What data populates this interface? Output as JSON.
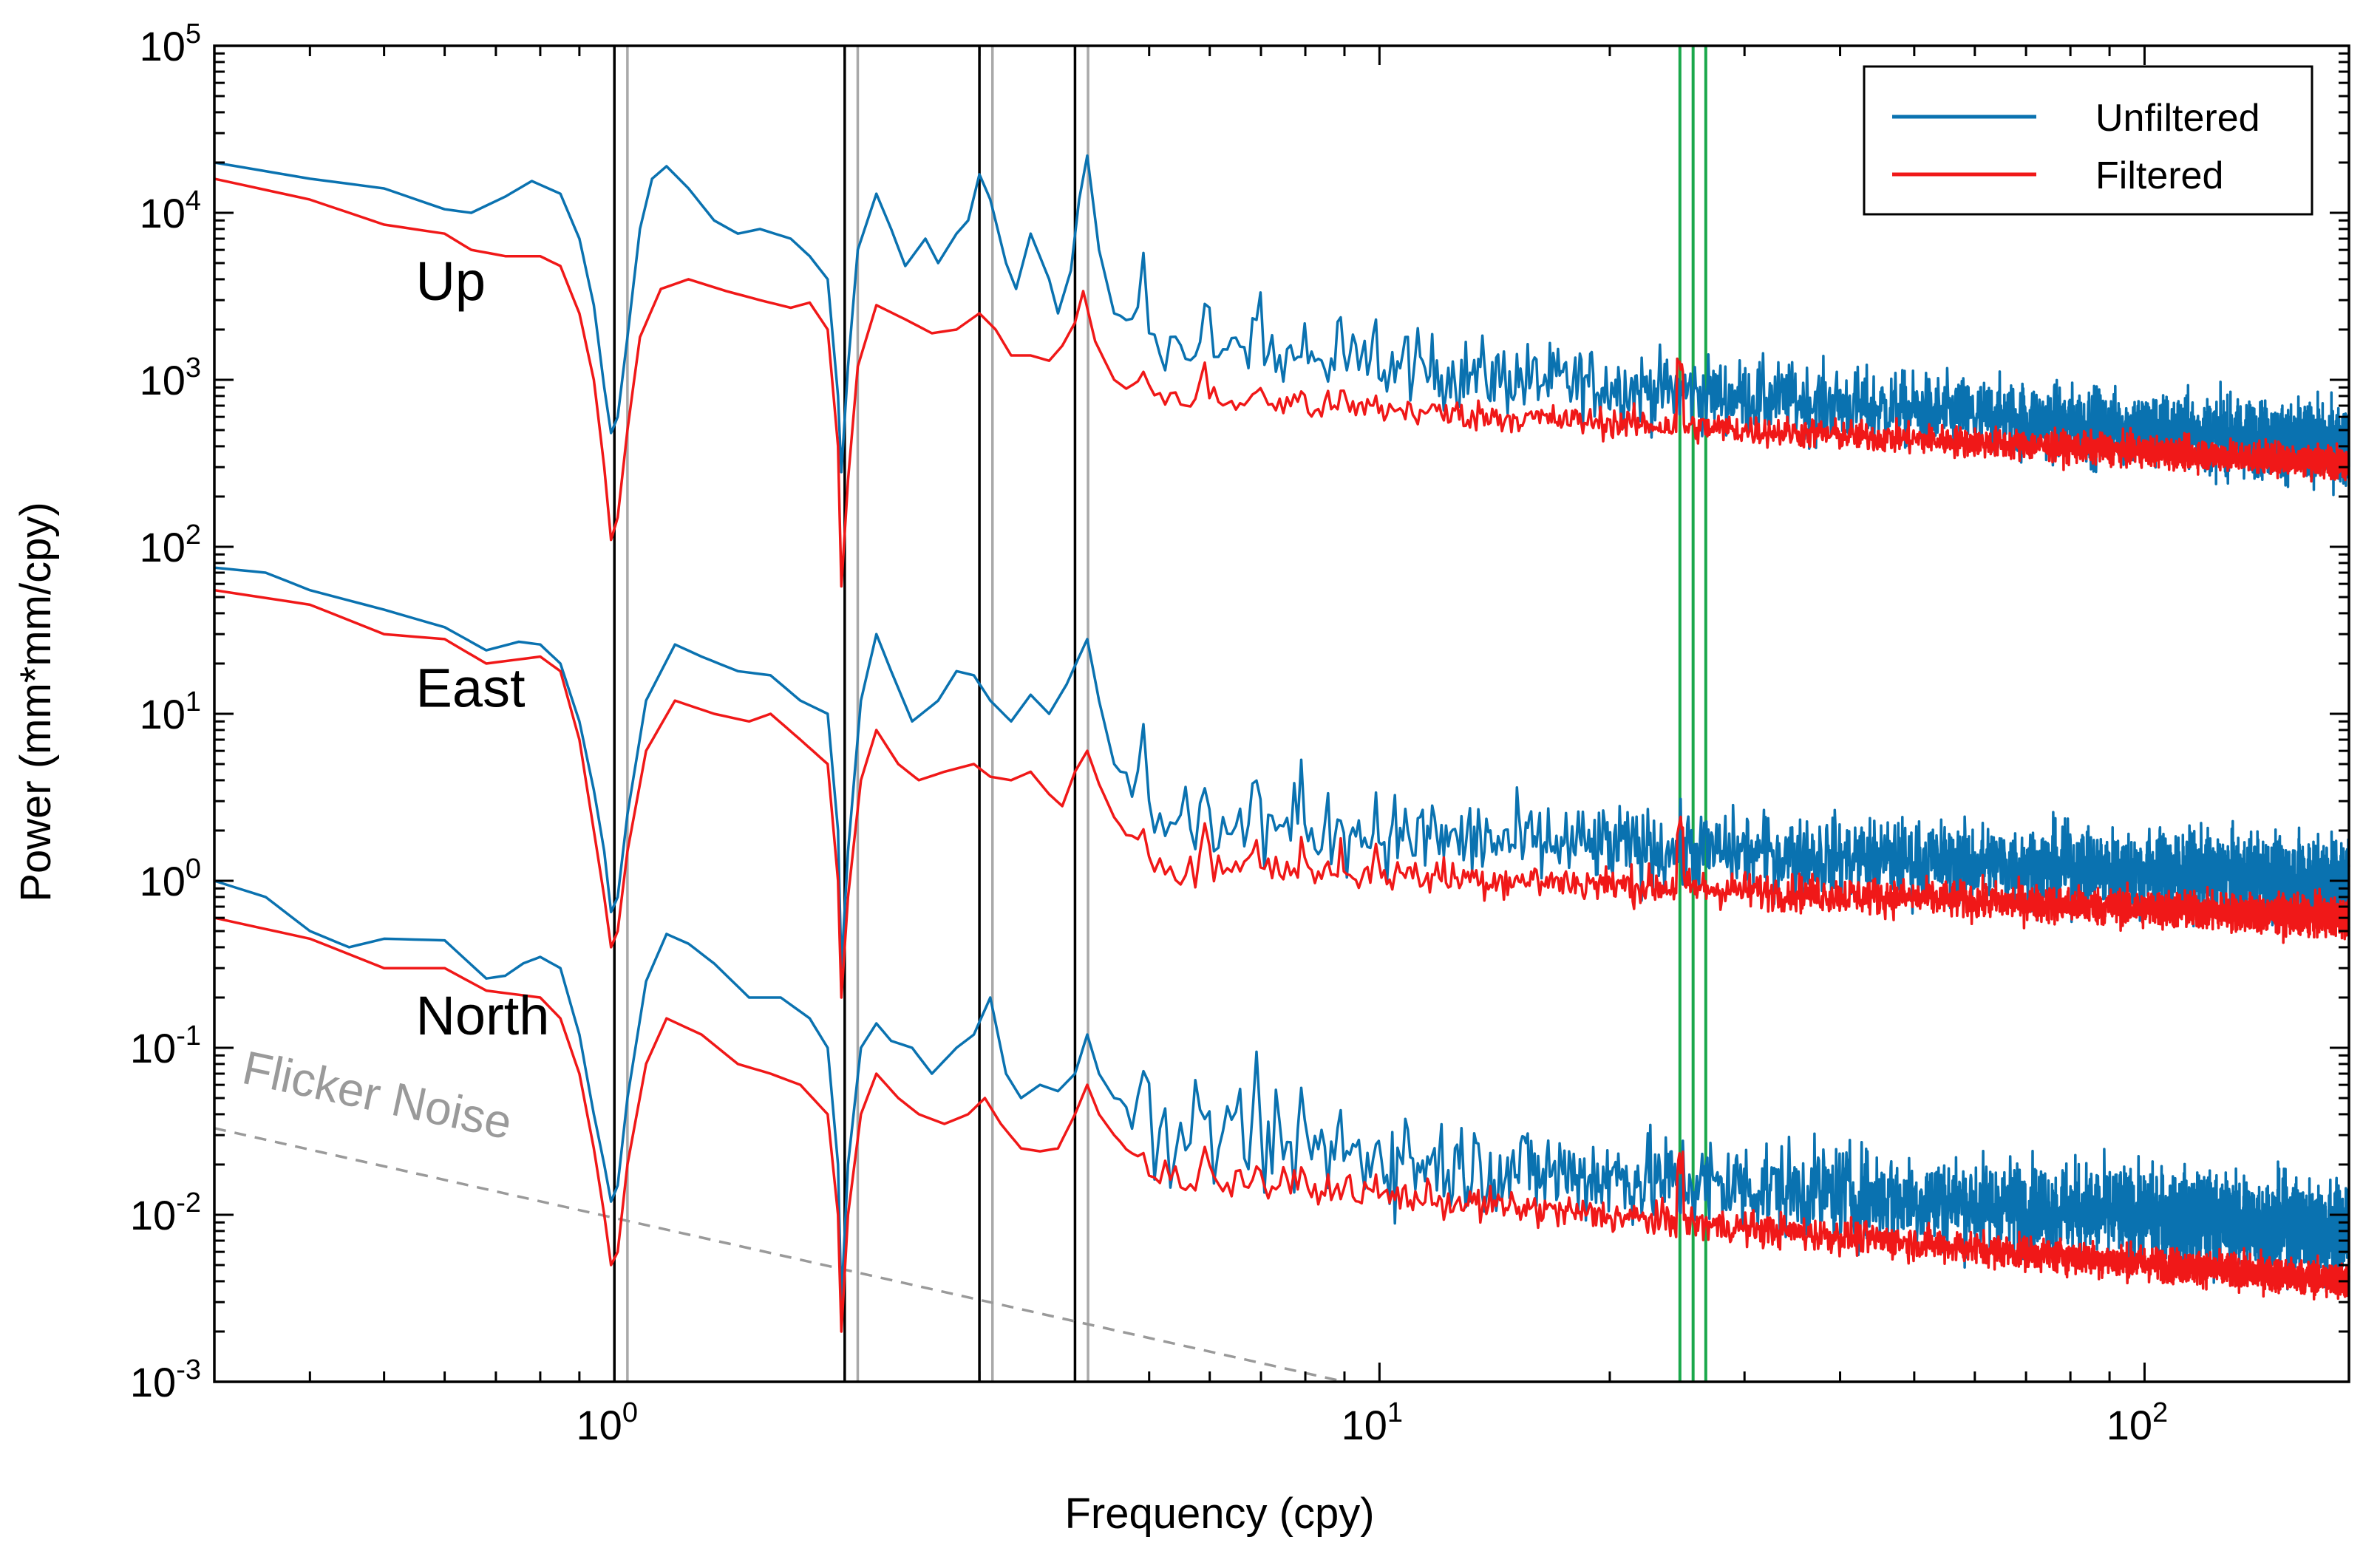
{
  "colors": {
    "unfiltered": "#0a72b0",
    "filtered": "#f01818",
    "vline_black": "#000000",
    "vline_gray": "#a9a9a9",
    "vline_green": "#1aa84b",
    "flicker": "#9a9a9a"
  },
  "chart_data": {
    "type": "line",
    "title": "",
    "xlabel": "Frequency (cpy)",
    "ylabel": "Power (mm*mm/cpy)",
    "xscale": "log",
    "yscale": "log",
    "xlim": [
      0.3,
      185
    ],
    "ylim": [
      0.001,
      100000
    ],
    "x_ticks": [
      {
        "value": 1,
        "base": "10",
        "exp": "0"
      },
      {
        "value": 10,
        "base": "10",
        "exp": "1"
      },
      {
        "value": 100,
        "base": "10",
        "exp": "2"
      }
    ],
    "y_ticks": [
      {
        "value": 0.001,
        "base": "10",
        "exp": "-3"
      },
      {
        "value": 0.01,
        "base": "10",
        "exp": "-2"
      },
      {
        "value": 0.1,
        "base": "10",
        "exp": "-1"
      },
      {
        "value": 1,
        "base": "10",
        "exp": "0"
      },
      {
        "value": 10,
        "base": "10",
        "exp": "1"
      },
      {
        "value": 100,
        "base": "10",
        "exp": "2"
      },
      {
        "value": 1000,
        "base": "10",
        "exp": "3"
      },
      {
        "value": 10000,
        "base": "10",
        "exp": "4"
      },
      {
        "value": 100000,
        "base": "10",
        "exp": "5"
      }
    ],
    "legend": {
      "position": "top-right",
      "entries": [
        {
          "name": "Unfiltered",
          "color": "#0a72b0"
        },
        {
          "name": "Filtered",
          "color": "#f01818"
        }
      ]
    },
    "panels": [
      {
        "label": "Up",
        "label_at": {
          "x": 0.55,
          "y": 3000
        },
        "unfiltered": [
          [
            0.3,
            20000
          ],
          [
            0.4,
            16000
          ],
          [
            0.5,
            14000
          ],
          [
            0.6,
            10500
          ],
          [
            0.65,
            10000
          ],
          [
            0.72,
            12500
          ],
          [
            0.78,
            15500
          ],
          [
            0.85,
            13000
          ],
          [
            0.9,
            7000
          ],
          [
            0.94,
            2800
          ],
          [
            0.97,
            900
          ],
          [
            0.99,
            480
          ],
          [
            1.01,
            600
          ],
          [
            1.04,
            1800
          ],
          [
            1.08,
            8000
          ],
          [
            1.12,
            16000
          ],
          [
            1.17,
            19000
          ],
          [
            1.25,
            14000
          ],
          [
            1.35,
            9000
          ],
          [
            1.45,
            7500
          ],
          [
            1.55,
            8000
          ],
          [
            1.7,
            7000
          ],
          [
            1.8,
            5500
          ],
          [
            1.9,
            4000
          ],
          [
            1.96,
            800
          ],
          [
            1.98,
            280
          ],
          [
            2.02,
            1200
          ],
          [
            2.08,
            6000
          ],
          [
            2.2,
            13000
          ],
          [
            2.3,
            8000
          ],
          [
            2.4,
            4800
          ],
          [
            2.55,
            7000
          ],
          [
            2.65,
            5000
          ],
          [
            2.8,
            7500
          ],
          [
            2.9,
            9000
          ],
          [
            3.0,
            17000
          ],
          [
            3.1,
            12000
          ],
          [
            3.25,
            5000
          ],
          [
            3.35,
            3500
          ],
          [
            3.5,
            7500
          ],
          [
            3.7,
            4000
          ],
          [
            3.8,
            2500
          ],
          [
            3.95,
            4500
          ],
          [
            4.05,
            12000
          ],
          [
            4.15,
            22000
          ],
          [
            4.3,
            6000
          ],
          [
            4.5,
            2500
          ]
        ],
        "filtered": [
          [
            0.3,
            16000
          ],
          [
            0.4,
            12000
          ],
          [
            0.5,
            8500
          ],
          [
            0.6,
            7500
          ],
          [
            0.65,
            6000
          ],
          [
            0.72,
            5500
          ],
          [
            0.8,
            5500
          ],
          [
            0.85,
            4800
          ],
          [
            0.9,
            2500
          ],
          [
            0.94,
            1000
          ],
          [
            0.97,
            300
          ],
          [
            0.99,
            110
          ],
          [
            1.01,
            150
          ],
          [
            1.04,
            500
          ],
          [
            1.08,
            1800
          ],
          [
            1.15,
            3500
          ],
          [
            1.25,
            4000
          ],
          [
            1.4,
            3400
          ],
          [
            1.55,
            3000
          ],
          [
            1.7,
            2700
          ],
          [
            1.8,
            2900
          ],
          [
            1.9,
            2000
          ],
          [
            1.96,
            400
          ],
          [
            1.98,
            58
          ],
          [
            2.02,
            250
          ],
          [
            2.08,
            1200
          ],
          [
            2.2,
            2800
          ],
          [
            2.4,
            2300
          ],
          [
            2.6,
            1900
          ],
          [
            2.8,
            2000
          ],
          [
            3.0,
            2500
          ],
          [
            3.15,
            2000
          ],
          [
            3.3,
            1400
          ],
          [
            3.5,
            1400
          ],
          [
            3.7,
            1300
          ],
          [
            3.85,
            1600
          ],
          [
            4.0,
            2200
          ],
          [
            4.1,
            3400
          ],
          [
            4.25,
            1700
          ],
          [
            4.5,
            1000
          ]
        ],
        "tail_unfiltered": {
          "start": 1600,
          "end": 400,
          "jitter": 0.22
        },
        "tail_filtered": {
          "start": 800,
          "end": 320,
          "jitter": 0.09
        },
        "bump_u": 0.55,
        "bump_f": 0.2
      },
      {
        "label": "East",
        "label_at": {
          "x": 0.55,
          "y": 11
        },
        "unfiltered": [
          [
            0.3,
            75
          ],
          [
            0.35,
            70
          ],
          [
            0.4,
            55
          ],
          [
            0.5,
            42
          ],
          [
            0.6,
            33
          ],
          [
            0.68,
            24
          ],
          [
            0.75,
            27
          ],
          [
            0.8,
            26
          ],
          [
            0.85,
            20
          ],
          [
            0.9,
            9
          ],
          [
            0.94,
            3.5
          ],
          [
            0.97,
            1.5
          ],
          [
            0.99,
            0.65
          ],
          [
            1.01,
            0.8
          ],
          [
            1.04,
            2.5
          ],
          [
            1.1,
            12
          ],
          [
            1.2,
            26
          ],
          [
            1.3,
            22
          ],
          [
            1.45,
            18
          ],
          [
            1.6,
            17
          ],
          [
            1.75,
            12
          ],
          [
            1.9,
            10
          ],
          [
            1.96,
            2
          ],
          [
            1.98,
            0.3
          ],
          [
            2.02,
            1.5
          ],
          [
            2.1,
            12
          ],
          [
            2.2,
            30
          ],
          [
            2.3,
            18
          ],
          [
            2.45,
            9
          ],
          [
            2.65,
            12
          ],
          [
            2.8,
            18
          ],
          [
            2.95,
            17
          ],
          [
            3.1,
            12
          ],
          [
            3.3,
            9
          ],
          [
            3.5,
            13
          ],
          [
            3.7,
            10
          ],
          [
            3.9,
            15
          ],
          [
            4.05,
            22
          ],
          [
            4.15,
            28
          ],
          [
            4.3,
            12
          ],
          [
            4.5,
            5
          ]
        ],
        "filtered": [
          [
            0.3,
            55
          ],
          [
            0.4,
            45
          ],
          [
            0.5,
            30
          ],
          [
            0.6,
            28
          ],
          [
            0.68,
            20
          ],
          [
            0.8,
            22
          ],
          [
            0.85,
            18
          ],
          [
            0.9,
            7
          ],
          [
            0.94,
            2
          ],
          [
            0.97,
            0.8
          ],
          [
            0.99,
            0.4
          ],
          [
            1.01,
            0.5
          ],
          [
            1.04,
            1.5
          ],
          [
            1.1,
            6
          ],
          [
            1.2,
            12
          ],
          [
            1.35,
            10
          ],
          [
            1.5,
            9
          ],
          [
            1.6,
            10
          ],
          [
            1.75,
            7
          ],
          [
            1.9,
            5
          ],
          [
            1.96,
            1
          ],
          [
            1.98,
            0.2
          ],
          [
            2.02,
            0.8
          ],
          [
            2.1,
            4
          ],
          [
            2.2,
            8
          ],
          [
            2.35,
            5
          ],
          [
            2.5,
            4
          ],
          [
            2.7,
            4.5
          ],
          [
            2.95,
            5
          ],
          [
            3.1,
            4.2
          ],
          [
            3.3,
            4
          ],
          [
            3.5,
            4.5
          ],
          [
            3.7,
            3.3
          ],
          [
            3.85,
            2.8
          ],
          [
            4.0,
            4.5
          ],
          [
            4.15,
            6
          ],
          [
            4.3,
            3.8
          ],
          [
            4.5,
            2.4
          ]
        ],
        "tail_unfiltered": {
          "start": 2.2,
          "end": 1.0,
          "jitter": 0.24
        },
        "tail_filtered": {
          "start": 1.3,
          "end": 0.6,
          "jitter": 0.11
        },
        "bump_u": 0.5,
        "bump_f": 0.25
      },
      {
        "label": "North",
        "label_at": {
          "x": 0.55,
          "y": 0.12
        },
        "unfiltered": [
          [
            0.3,
            1.0
          ],
          [
            0.35,
            0.8
          ],
          [
            0.4,
            0.5
          ],
          [
            0.45,
            0.4
          ],
          [
            0.5,
            0.45
          ],
          [
            0.6,
            0.44
          ],
          [
            0.68,
            0.26
          ],
          [
            0.72,
            0.27
          ],
          [
            0.76,
            0.32
          ],
          [
            0.8,
            0.35
          ],
          [
            0.85,
            0.3
          ],
          [
            0.9,
            0.12
          ],
          [
            0.94,
            0.04
          ],
          [
            0.97,
            0.02
          ],
          [
            0.99,
            0.012
          ],
          [
            1.01,
            0.015
          ],
          [
            1.04,
            0.05
          ],
          [
            1.1,
            0.25
          ],
          [
            1.17,
            0.48
          ],
          [
            1.25,
            0.42
          ],
          [
            1.35,
            0.32
          ],
          [
            1.5,
            0.2
          ],
          [
            1.65,
            0.2
          ],
          [
            1.8,
            0.15
          ],
          [
            1.9,
            0.1
          ],
          [
            1.96,
            0.02
          ],
          [
            1.98,
            0.003
          ],
          [
            2.02,
            0.02
          ],
          [
            2.1,
            0.1
          ],
          [
            2.2,
            0.14
          ],
          [
            2.3,
            0.11
          ],
          [
            2.45,
            0.1
          ],
          [
            2.6,
            0.07
          ],
          [
            2.8,
            0.1
          ],
          [
            2.95,
            0.12
          ],
          [
            3.1,
            0.2
          ],
          [
            3.25,
            0.07
          ],
          [
            3.4,
            0.05
          ],
          [
            3.6,
            0.06
          ],
          [
            3.8,
            0.055
          ],
          [
            4.0,
            0.07
          ],
          [
            4.15,
            0.12
          ],
          [
            4.3,
            0.07
          ],
          [
            4.5,
            0.05
          ]
        ],
        "filtered": [
          [
            0.3,
            0.6
          ],
          [
            0.4,
            0.45
          ],
          [
            0.5,
            0.3
          ],
          [
            0.6,
            0.3
          ],
          [
            0.68,
            0.22
          ],
          [
            0.8,
            0.2
          ],
          [
            0.85,
            0.15
          ],
          [
            0.9,
            0.07
          ],
          [
            0.94,
            0.025
          ],
          [
            0.97,
            0.01
          ],
          [
            0.99,
            0.005
          ],
          [
            1.01,
            0.006
          ],
          [
            1.04,
            0.02
          ],
          [
            1.1,
            0.08
          ],
          [
            1.17,
            0.15
          ],
          [
            1.3,
            0.12
          ],
          [
            1.45,
            0.08
          ],
          [
            1.6,
            0.07
          ],
          [
            1.75,
            0.06
          ],
          [
            1.9,
            0.04
          ],
          [
            1.96,
            0.01
          ],
          [
            1.98,
            0.002
          ],
          [
            2.02,
            0.01
          ],
          [
            2.1,
            0.04
          ],
          [
            2.2,
            0.07
          ],
          [
            2.35,
            0.05
          ],
          [
            2.5,
            0.04
          ],
          [
            2.7,
            0.035
          ],
          [
            2.9,
            0.04
          ],
          [
            3.05,
            0.05
          ],
          [
            3.2,
            0.035
          ],
          [
            3.4,
            0.025
          ],
          [
            3.6,
            0.024
          ],
          [
            3.8,
            0.025
          ],
          [
            4.0,
            0.04
          ],
          [
            4.15,
            0.06
          ],
          [
            4.3,
            0.04
          ],
          [
            4.5,
            0.03
          ]
        ],
        "tail_unfiltered": {
          "start": 0.028,
          "end": 0.008,
          "jitter": 0.28
        },
        "tail_filtered": {
          "start": 0.018,
          "end": 0.004,
          "jitter": 0.1
        },
        "bump_u": 0.6,
        "bump_f": 0.2
      }
    ],
    "vertical_lines": [
      {
        "x": 1.0,
        "color": "black"
      },
      {
        "x": 1.04,
        "color": "gray"
      },
      {
        "x": 2.0,
        "color": "black"
      },
      {
        "x": 2.08,
        "color": "gray"
      },
      {
        "x": 3.0,
        "color": "black"
      },
      {
        "x": 3.12,
        "color": "gray"
      },
      {
        "x": 4.0,
        "color": "black"
      },
      {
        "x": 4.16,
        "color": "gray"
      },
      {
        "x": 24.7,
        "color": "green"
      },
      {
        "x": 25.7,
        "color": "green"
      },
      {
        "x": 26.7,
        "color": "green"
      }
    ],
    "flicker_noise": {
      "label": "Flicker Noise",
      "from": [
        0.3,
        0.033
      ],
      "to": [
        9,
        0.001
      ]
    }
  }
}
